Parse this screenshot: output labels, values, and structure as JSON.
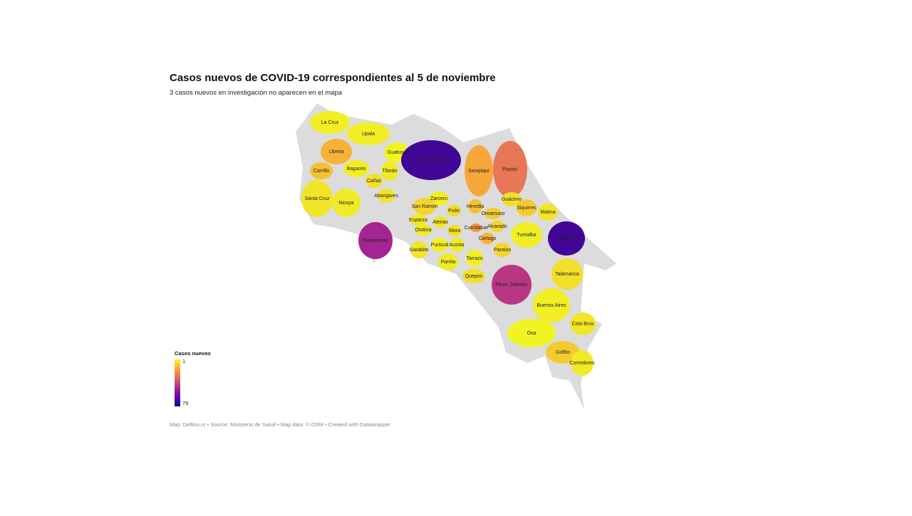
{
  "title": "Casos nuevos de COVID-19 correspondientes al 5 de noviembre",
  "subtitle": "3 casos nuevos en investigación no aparecen en el mapa",
  "legend": {
    "title": "Casos nuevos",
    "min": 1,
    "max": 79
  },
  "footer": "Map: Delfino.cr • Source: Ministerio de Salud • Map data: © OSM • Created with Datawrapper",
  "regions": [
    {
      "name": "La Cruz",
      "value": 3
    },
    {
      "name": "Upala",
      "value": 3
    },
    {
      "name": "Liberia",
      "value": 15
    },
    {
      "name": "Guatuso",
      "value": 2
    },
    {
      "name": "Carrillo",
      "value": 12
    },
    {
      "name": "Bagaces",
      "value": 3
    },
    {
      "name": "Tilarán",
      "value": 4
    },
    {
      "name": "San Carlos",
      "value": 70
    },
    {
      "name": "Sarapiquí",
      "value": 17
    },
    {
      "name": "Pococí",
      "value": 28
    },
    {
      "name": "Cañas",
      "value": 6
    },
    {
      "name": "Abangares",
      "value": 5
    },
    {
      "name": "Santa Cruz",
      "value": 5
    },
    {
      "name": "Nicoya",
      "value": 4
    },
    {
      "name": "Guácimo",
      "value": 6
    },
    {
      "name": "Zarcero",
      "value": 3
    },
    {
      "name": "San Ramón",
      "value": 8
    },
    {
      "name": "Heredia",
      "value": 12
    },
    {
      "name": "Siquirres",
      "value": 10
    },
    {
      "name": "Matina",
      "value": 5
    },
    {
      "name": "Oreamuno",
      "value": 10
    },
    {
      "name": "Poás",
      "value": 7
    },
    {
      "name": "Esparza",
      "value": 4
    },
    {
      "name": "Atenas",
      "value": 5
    },
    {
      "name": "Alvarado",
      "value": 8
    },
    {
      "name": "Puntarenas",
      "value": 50
    },
    {
      "name": "Orotina",
      "value": 4
    },
    {
      "name": "Mora",
      "value": 6
    },
    {
      "name": "Turrialba",
      "value": 3
    },
    {
      "name": "Cartago",
      "value": 15
    },
    {
      "name": "Limón",
      "value": 70
    },
    {
      "name": "Puriscal",
      "value": 3
    },
    {
      "name": "Acosta",
      "value": 4
    },
    {
      "name": "Paraíso",
      "value": 8
    },
    {
      "name": "Garabito",
      "value": 5
    },
    {
      "name": "Tarrazú",
      "value": 3
    },
    {
      "name": "Parrita",
      "value": 4
    },
    {
      "name": "Quepos",
      "value": 6
    },
    {
      "name": "Talamanca",
      "value": 6
    },
    {
      "name": "Pérez Zeledón",
      "value": 45
    },
    {
      "name": "Buenos Aires",
      "value": 3
    },
    {
      "name": "Coto Brus",
      "value": 5
    },
    {
      "name": "Osa",
      "value": 2
    },
    {
      "name": "Golfito",
      "value": 10
    },
    {
      "name": "Corredores",
      "value": 4
    },
    {
      "name": "Curridabat",
      "value": 20
    }
  ]
}
